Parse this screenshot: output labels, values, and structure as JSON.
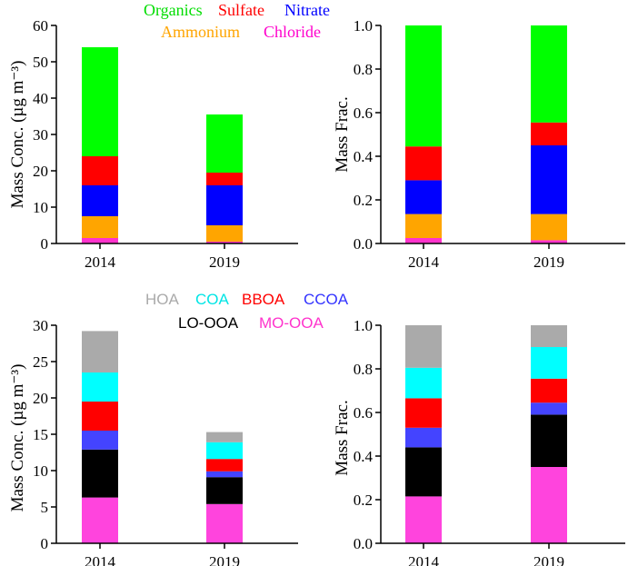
{
  "chart_data": [
    {
      "type": "bar",
      "stacked": true,
      "categories": [
        "2014",
        "2019"
      ],
      "ylabel": "Mass Conc. (µg m⁻³)",
      "ylim": [
        0,
        60
      ],
      "yticks": [
        "0",
        "10",
        "20",
        "30",
        "40",
        "50",
        "60"
      ],
      "legend": "top",
      "series": [
        {
          "name": "Chloride",
          "color": "#ff33cc",
          "values": [
            1.5,
            0.5
          ]
        },
        {
          "name": "Ammonium",
          "color": "#ffa500",
          "values": [
            6.0,
            4.5
          ]
        },
        {
          "name": "Nitrate",
          "color": "#0000ff",
          "values": [
            8.5,
            11.0
          ]
        },
        {
          "name": "Sulfate",
          "color": "#ff0000",
          "values": [
            8.0,
            3.5
          ]
        },
        {
          "name": "Organics",
          "color": "#00ff00",
          "values": [
            30.0,
            16.0
          ]
        }
      ]
    },
    {
      "type": "bar",
      "stacked": true,
      "categories": [
        "2014",
        "2019"
      ],
      "ylabel": "Mass Frac.",
      "ylim": [
        0,
        1.0
      ],
      "yticks": [
        "0.0",
        "0.2",
        "0.4",
        "0.6",
        "0.8",
        "1.0"
      ],
      "series": [
        {
          "name": "Chloride",
          "color": "#ff33cc",
          "values": [
            0.025,
            0.015
          ]
        },
        {
          "name": "Ammonium",
          "color": "#ffa500",
          "values": [
            0.11,
            0.12
          ]
        },
        {
          "name": "Nitrate",
          "color": "#0000ff",
          "values": [
            0.155,
            0.315
          ]
        },
        {
          "name": "Sulfate",
          "color": "#ff0000",
          "values": [
            0.155,
            0.105
          ]
        },
        {
          "name": "Organics",
          "color": "#00ff00",
          "values": [
            0.555,
            0.445
          ]
        }
      ]
    },
    {
      "type": "bar",
      "stacked": true,
      "categories": [
        "2014",
        "2019"
      ],
      "ylabel": "Mass Conc. (µg m⁻³)",
      "ylim": [
        0,
        30
      ],
      "yticks": [
        "0",
        "5",
        "10",
        "15",
        "20",
        "25",
        "30"
      ],
      "legend": "top",
      "series": [
        {
          "name": "MO-OOA",
          "color": "#ff44dd",
          "values": [
            6.3,
            5.4
          ]
        },
        {
          "name": "LO-OOA",
          "color": "#000000",
          "values": [
            6.6,
            3.7
          ]
        },
        {
          "name": "CCOA",
          "color": "#4444ff",
          "values": [
            2.6,
            0.8
          ]
        },
        {
          "name": "BBOA",
          "color": "#ff0000",
          "values": [
            4.0,
            1.7
          ]
        },
        {
          "name": "COA",
          "color": "#00ffff",
          "values": [
            4.0,
            2.3
          ]
        },
        {
          "name": "HOA",
          "color": "#aaaaaa",
          "values": [
            5.7,
            1.4
          ]
        }
      ]
    },
    {
      "type": "bar",
      "stacked": true,
      "categories": [
        "2014",
        "2019"
      ],
      "ylabel": "Mass Frac.",
      "ylim": [
        0,
        1.0
      ],
      "yticks": [
        "0.0",
        "0.2",
        "0.4",
        "0.6",
        "0.8",
        "1.0"
      ],
      "series": [
        {
          "name": "MO-OOA",
          "color": "#ff44dd",
          "values": [
            0.215,
            0.35
          ]
        },
        {
          "name": "LO-OOA",
          "color": "#000000",
          "values": [
            0.225,
            0.24
          ]
        },
        {
          "name": "CCOA",
          "color": "#4444ff",
          "values": [
            0.09,
            0.055
          ]
        },
        {
          "name": "BBOA",
          "color": "#ff0000",
          "values": [
            0.135,
            0.11
          ]
        },
        {
          "name": "COA",
          "color": "#00ffff",
          "values": [
            0.14,
            0.145
          ]
        },
        {
          "name": "HOA",
          "color": "#aaaaaa",
          "values": [
            0.195,
            0.1
          ]
        }
      ]
    }
  ],
  "legends": {
    "top": {
      "row1": [
        {
          "label": "Organics",
          "color": "#00dd00"
        },
        {
          "label": "Sulfate",
          "color": "#ff0000"
        },
        {
          "label": "Nitrate",
          "color": "#0000ff"
        }
      ],
      "row2": [
        {
          "label": "Ammonium",
          "color": "#ffa500"
        },
        {
          "label": "Chloride",
          "color": "#ff00cc"
        }
      ]
    },
    "bottom": {
      "row1": [
        {
          "label": "HOA",
          "color": "#aaaaaa"
        },
        {
          "label": "COA",
          "color": "#00e5e5"
        },
        {
          "label": "BBOA",
          "color": "#ff0000"
        },
        {
          "label": "CCOA",
          "color": "#3333ff"
        }
      ],
      "row2": [
        {
          "label": "LO-OOA",
          "color": "#000000"
        },
        {
          "label": "MO-OOA",
          "color": "#ff33cc"
        }
      ]
    }
  }
}
